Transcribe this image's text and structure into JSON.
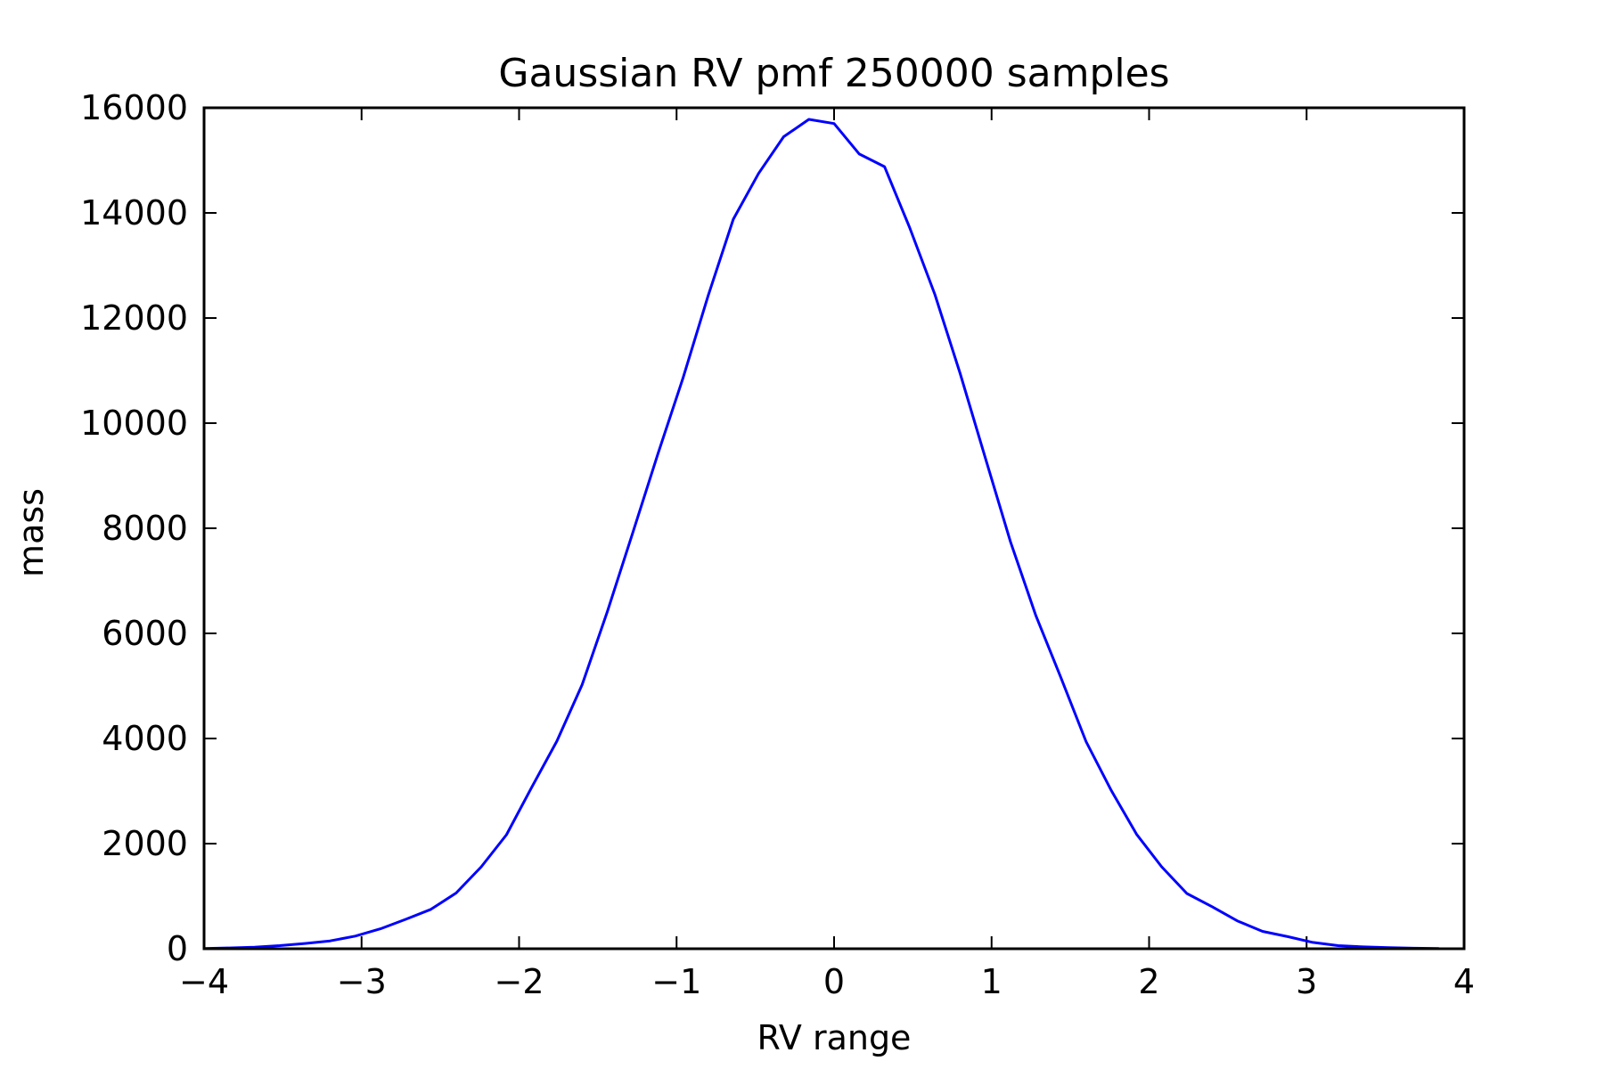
{
  "chart_data": {
    "type": "line",
    "title": "Gaussian RV pmf 250000 samples",
    "xlabel": "RV range",
    "ylabel": "mass",
    "xlim": [
      -4,
      4
    ],
    "ylim": [
      0,
      16000
    ],
    "grid": false,
    "x_ticks": [
      -4,
      -3,
      -2,
      -1,
      0,
      1,
      2,
      3,
      4
    ],
    "x_tick_labels": [
      "−4",
      "−3",
      "−2",
      "−1",
      "0",
      "1",
      "2",
      "3",
      "4"
    ],
    "y_ticks": [
      0,
      2000,
      4000,
      6000,
      8000,
      10000,
      12000,
      14000,
      16000
    ],
    "y_tick_labels": [
      "0",
      "2000",
      "4000",
      "6000",
      "8000",
      "10000",
      "12000",
      "14000",
      "16000"
    ],
    "series": [
      {
        "color": "#0000ff",
        "x": [
          -4.0,
          -3.84,
          -3.68,
          -3.52,
          -3.36,
          -3.2,
          -3.04,
          -2.88,
          -2.72,
          -2.56,
          -2.4,
          -2.24,
          -2.08,
          -1.92,
          -1.76,
          -1.6,
          -1.44,
          -1.28,
          -1.12,
          -0.96,
          -0.8,
          -0.64,
          -0.48,
          -0.32,
          -0.16,
          0.0,
          0.16,
          0.32,
          0.48,
          0.64,
          0.8,
          0.96,
          1.12,
          1.28,
          1.44,
          1.6,
          1.76,
          1.92,
          2.08,
          2.24,
          2.4,
          2.56,
          2.72,
          2.88,
          3.04,
          3.2,
          3.36,
          3.52,
          3.68,
          3.84
        ],
        "y": [
          5,
          15,
          30,
          60,
          100,
          150,
          240,
          380,
          560,
          750,
          1060,
          1560,
          2170,
          3070,
          3950,
          5020,
          6410,
          7900,
          9400,
          10850,
          12420,
          13880,
          14750,
          15450,
          15780,
          15700,
          15120,
          14880,
          13720,
          12450,
          10950,
          9340,
          7740,
          6350,
          5160,
          3940,
          3010,
          2180,
          1560,
          1050,
          800,
          530,
          330,
          230,
          120,
          60,
          35,
          20,
          10,
          5
        ]
      }
    ]
  }
}
